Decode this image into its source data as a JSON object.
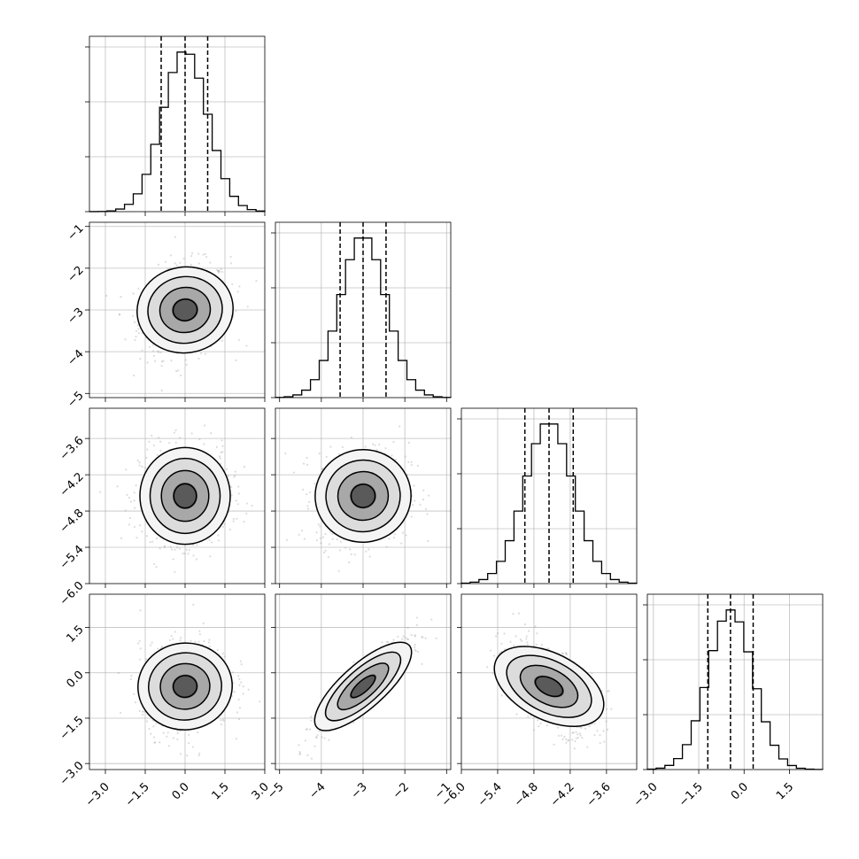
{
  "chart_data": {
    "type": "corner",
    "parameters": [
      {
        "range": [
          -3.6,
          3.0
        ],
        "ticks": [
          "−3.0",
          "−1.5",
          "0.0",
          "1.5",
          "3.0"
        ],
        "tick_values": [
          -3.0,
          -1.5,
          0.0,
          1.5,
          3.0
        ],
        "quantiles": [
          -0.9,
          0.0,
          0.85
        ],
        "mean": 0.0,
        "sd": 0.85
      },
      {
        "range": [
          -5.1,
          -0.9
        ],
        "ticks": [
          "−5",
          "−4",
          "−3",
          "−2",
          "−1"
        ],
        "tick_values": [
          -5,
          -4,
          -3,
          -2,
          -1
        ],
        "quantiles": [
          -3.55,
          -3.0,
          -2.45
        ],
        "mean": -3.0,
        "sd": 0.55
      },
      {
        "range": [
          -6.0,
          -3.1
        ],
        "ticks": [
          "−6.0",
          "−5.4",
          "−4.8",
          "−4.2",
          "−3.6"
        ],
        "tick_values": [
          -6.0,
          -5.4,
          -4.8,
          -4.2,
          -3.6
        ],
        "quantiles": [
          -4.95,
          -4.55,
          -4.15
        ],
        "mean": -4.55,
        "sd": 0.4
      },
      {
        "range": [
          -3.2,
          2.6
        ],
        "ticks": [
          "−3.0",
          "−1.5",
          "0.0",
          "1.5"
        ],
        "tick_values": [
          -3.0,
          -1.5,
          0.0,
          1.5
        ],
        "y_ticks": [
          "−3.0",
          "−1.5",
          "0.0",
          "1.5"
        ],
        "quantiles": [
          -1.2,
          -0.45,
          0.3
        ],
        "mean": -0.45,
        "sd": 0.75
      }
    ],
    "correlations": {
      "1-0": 0.15,
      "2-0": 0.0,
      "2-1": 0.1,
      "3-0": 0.1,
      "3-1": 0.9,
      "3-2": -0.55
    },
    "grid": true
  }
}
